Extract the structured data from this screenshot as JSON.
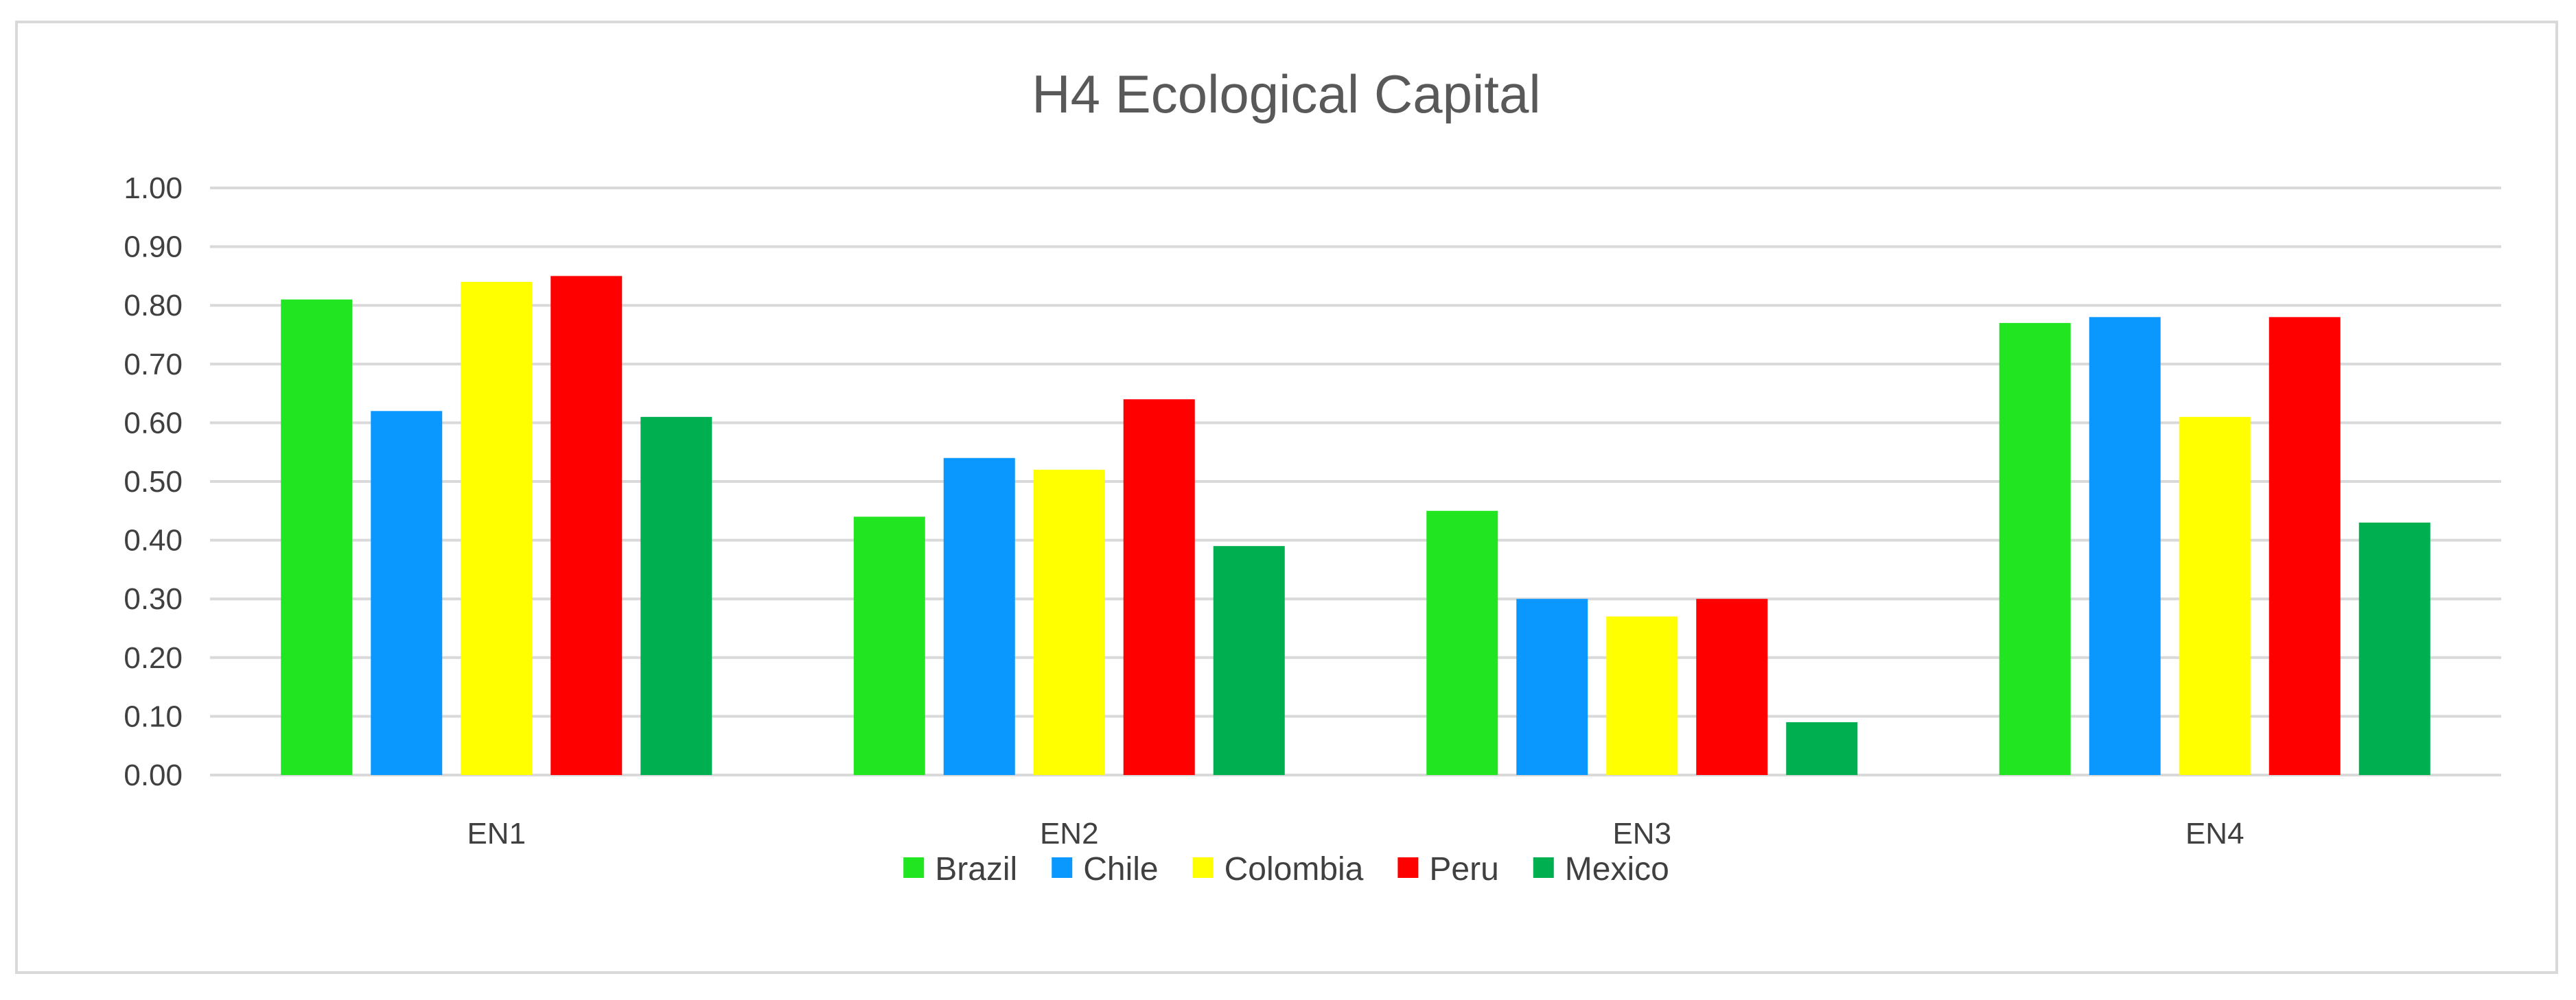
{
  "chart_data": {
    "type": "bar",
    "title": "H4 Ecological Capital",
    "xlabel": "",
    "ylabel": "",
    "categories": [
      "EN1",
      "EN2",
      "EN3",
      "EN4"
    ],
    "ylim": [
      0,
      1.0
    ],
    "yticks": [
      "0.00",
      "0.10",
      "0.20",
      "0.30",
      "0.40",
      "0.50",
      "0.60",
      "0.70",
      "0.80",
      "0.90",
      "1.00"
    ],
    "grid": true,
    "legend_position": "bottom",
    "series": [
      {
        "name": "Brazil",
        "color": "#22e522",
        "values": [
          0.81,
          0.44,
          0.45,
          0.77
        ]
      },
      {
        "name": "Chile",
        "color": "#0a98ff",
        "values": [
          0.62,
          0.54,
          0.3,
          0.78
        ]
      },
      {
        "name": "Colombia",
        "color": "#ffff00",
        "values": [
          0.84,
          0.52,
          0.27,
          0.61
        ]
      },
      {
        "name": "Peru",
        "color": "#ff0000",
        "values": [
          0.85,
          0.64,
          0.3,
          0.78
        ]
      },
      {
        "name": "Mexico",
        "color": "#00b050",
        "values": [
          0.61,
          0.39,
          0.09,
          0.43
        ]
      }
    ]
  }
}
